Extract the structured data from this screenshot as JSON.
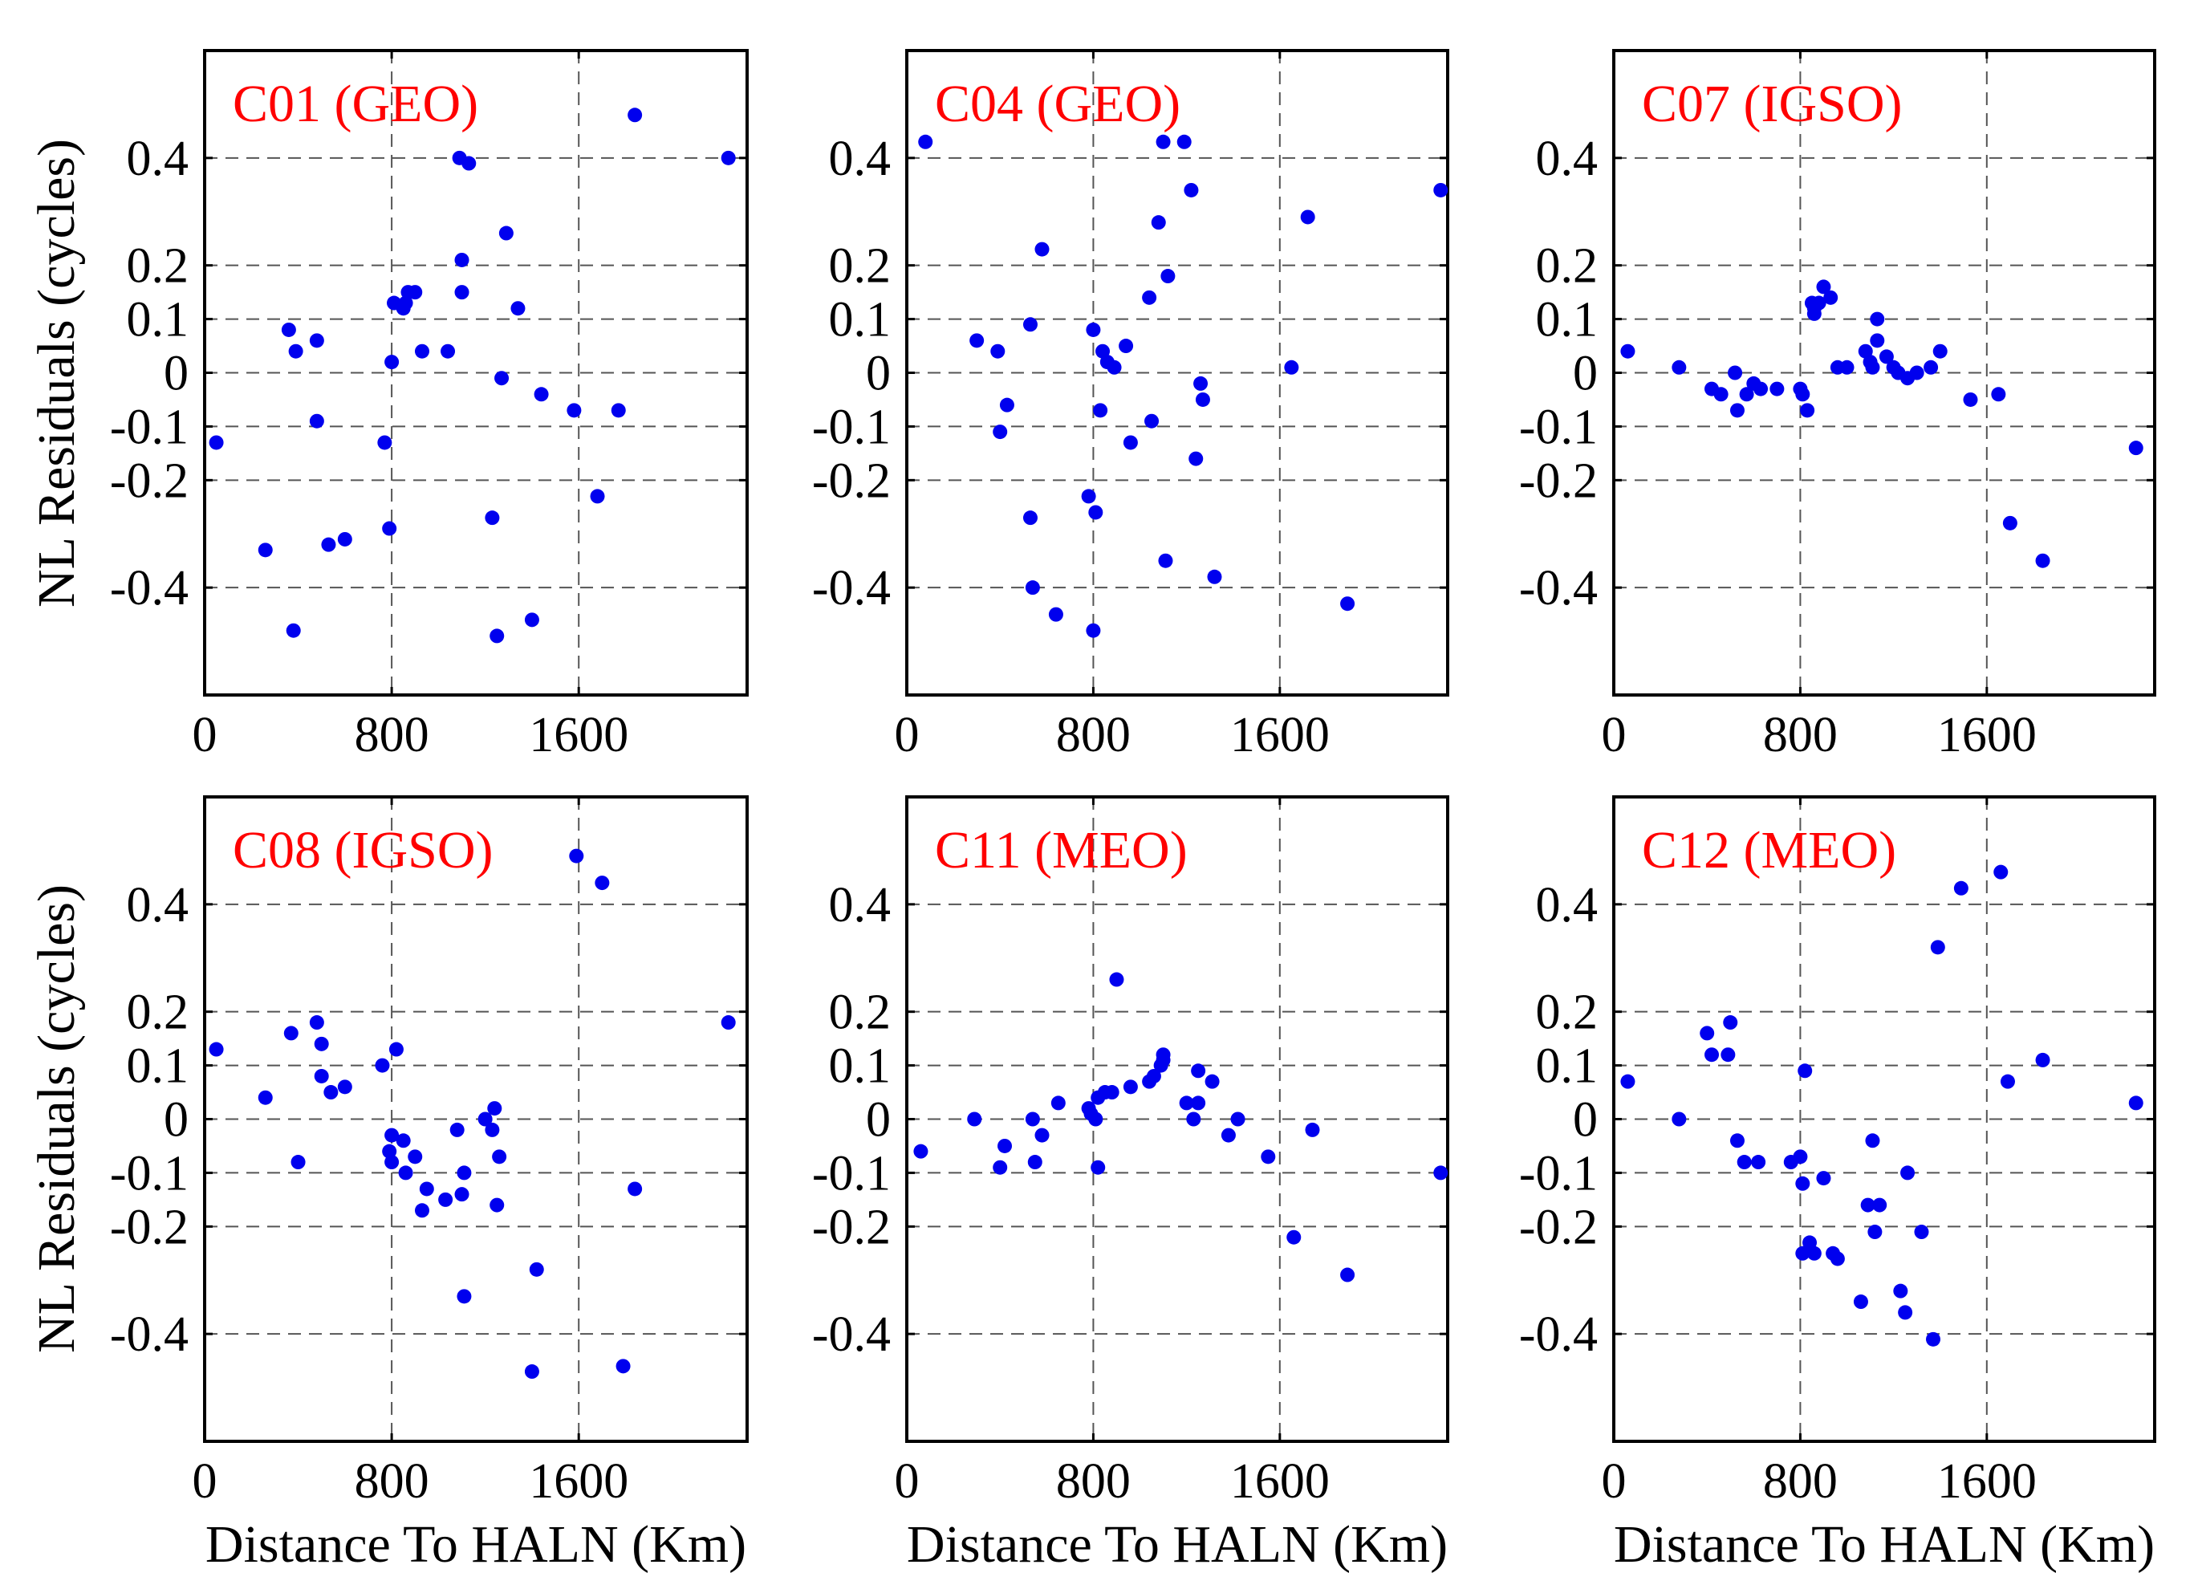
{
  "figure": {
    "ylabel": "NL Residuals (cycles)",
    "xlabel": "Distance To HALN (Km)",
    "title_color": "#ff0000",
    "marker_color": "#0000ee"
  },
  "chart_data": [
    {
      "type": "scatter",
      "title": "C01 (GEO)",
      "xlim": [
        0,
        2320
      ],
      "ylim": [
        -0.6,
        0.6
      ],
      "xticks": [
        0,
        800,
        1600
      ],
      "xtick_labels": [
        "0",
        "800",
        "1600"
      ],
      "yticks": [
        0.4,
        0.2,
        0.1,
        0,
        -0.1,
        -0.2,
        -0.4
      ],
      "ytick_labels": [
        "0.4",
        "0.2",
        "0.1",
        "0",
        "-0.1",
        "-0.2",
        "-0.4"
      ],
      "grid": true,
      "xlabel": "",
      "ylabel": "NL Residuals (cycles)",
      "x": [
        50,
        260,
        360,
        390,
        380,
        480,
        480,
        530,
        600,
        770,
        790,
        800,
        810,
        860,
        870,
        850,
        900,
        930,
        1040,
        1090,
        1100,
        1100,
        1130,
        1250,
        1230,
        1270,
        1290,
        1340,
        1400,
        1440,
        1580,
        1680,
        1770,
        1840,
        2240
      ],
      "y": [
        -0.13,
        -0.33,
        0.08,
        0.04,
        -0.48,
        0.06,
        -0.09,
        -0.32,
        -0.31,
        -0.13,
        -0.29,
        0.02,
        0.13,
        0.13,
        0.15,
        0.12,
        0.15,
        0.04,
        0.04,
        0.4,
        0.21,
        0.15,
        0.39,
        -0.49,
        -0.27,
        -0.01,
        0.26,
        0.12,
        -0.46,
        -0.04,
        -0.07,
        -0.23,
        -0.07,
        0.48,
        0.4
      ]
    },
    {
      "type": "scatter",
      "title": "C04 (GEO)",
      "xlim": [
        0,
        2320
      ],
      "ylim": [
        -0.6,
        0.6
      ],
      "xticks": [
        0,
        800,
        1600
      ],
      "xtick_labels": [
        "0",
        "800",
        "1600"
      ],
      "yticks": [
        0.4,
        0.2,
        0.1,
        0,
        -0.1,
        -0.2,
        -0.4
      ],
      "ytick_labels": [
        "0.4",
        "0.2",
        "0.1",
        "0",
        "-0.1",
        "-0.2",
        "-0.4"
      ],
      "grid": true,
      "xlabel": "",
      "ylabel": "",
      "x": [
        80,
        300,
        390,
        400,
        430,
        530,
        530,
        540,
        580,
        640,
        780,
        800,
        810,
        800,
        830,
        840,
        860,
        890,
        940,
        960,
        1040,
        1050,
        1080,
        1100,
        1110,
        1120,
        1190,
        1220,
        1240,
        1260,
        1270,
        1320,
        1650,
        1720,
        1890,
        2290
      ],
      "y": [
        0.43,
        0.06,
        0.04,
        -0.11,
        -0.06,
        0.09,
        -0.27,
        -0.4,
        0.23,
        -0.45,
        -0.23,
        -0.48,
        -0.26,
        0.08,
        -0.07,
        0.04,
        0.02,
        0.01,
        0.05,
        -0.13,
        0.14,
        -0.09,
        0.28,
        0.43,
        -0.35,
        0.18,
        0.43,
        0.34,
        -0.16,
        -0.02,
        -0.05,
        -0.38,
        0.01,
        0.29,
        -0.43,
        0.34
      ]
    },
    {
      "type": "scatter",
      "title": "C07 (IGSO)",
      "xlim": [
        0,
        2320
      ],
      "ylim": [
        -0.6,
        0.6
      ],
      "xticks": [
        0,
        800,
        1600
      ],
      "xtick_labels": [
        "0",
        "800",
        "1600"
      ],
      "yticks": [
        0.4,
        0.2,
        0.1,
        0,
        -0.1,
        -0.2,
        -0.4
      ],
      "ytick_labels": [
        "0.4",
        "0.2",
        "0.1",
        "0",
        "-0.1",
        "-0.2",
        "-0.4"
      ],
      "grid": true,
      "xlabel": "",
      "ylabel": "",
      "x": [
        60,
        280,
        420,
        460,
        520,
        530,
        570,
        600,
        630,
        700,
        800,
        810,
        830,
        850,
        860,
        860,
        880,
        900,
        930,
        960,
        1000,
        1080,
        1100,
        1110,
        1130,
        1130,
        1170,
        1200,
        1220,
        1260,
        1300,
        1360,
        1400,
        1530,
        1650,
        1700,
        1840,
        2240
      ],
      "y": [
        0.04,
        0.01,
        -0.03,
        -0.04,
        0.0,
        -0.07,
        -0.04,
        -0.02,
        -0.03,
        -0.03,
        -0.03,
        -0.04,
        -0.07,
        0.13,
        0.11,
        0.12,
        0.13,
        0.16,
        0.14,
        0.01,
        0.01,
        0.04,
        0.02,
        0.01,
        0.1,
        0.06,
        0.03,
        0.01,
        0.0,
        -0.01,
        0.0,
        0.01,
        0.04,
        -0.05,
        -0.04,
        -0.28,
        -0.35,
        -0.14
      ]
    },
    {
      "type": "scatter",
      "title": "C08 (IGSO)",
      "xlim": [
        0,
        2320
      ],
      "ylim": [
        -0.6,
        0.6
      ],
      "xticks": [
        0,
        800,
        1600
      ],
      "xtick_labels": [
        "0",
        "800",
        "1600"
      ],
      "yticks": [
        0.4,
        0.2,
        0.1,
        0,
        -0.1,
        -0.2,
        -0.4
      ],
      "ytick_labels": [
        "0.4",
        "0.2",
        "0.1",
        "0",
        "-0.1",
        "-0.2",
        "-0.4"
      ],
      "grid": true,
      "xlabel": "Distance To HALN (Km)",
      "ylabel": "NL Residuals (cycles)",
      "x": [
        50,
        260,
        370,
        400,
        480,
        500,
        500,
        540,
        600,
        760,
        790,
        800,
        800,
        820,
        850,
        860,
        900,
        930,
        950,
        1030,
        1080,
        1100,
        1110,
        1110,
        1200,
        1230,
        1240,
        1250,
        1260,
        1400,
        1420,
        1590,
        1700,
        1790,
        1840,
        2240
      ],
      "y": [
        0.13,
        0.04,
        0.16,
        -0.08,
        0.18,
        0.14,
        0.08,
        0.05,
        0.06,
        0.1,
        -0.06,
        -0.08,
        -0.03,
        0.13,
        -0.04,
        -0.1,
        -0.07,
        -0.17,
        -0.13,
        -0.15,
        -0.02,
        -0.14,
        -0.1,
        -0.33,
        0.0,
        -0.02,
        0.02,
        -0.16,
        -0.07,
        -0.47,
        -0.28,
        0.49,
        0.44,
        -0.46,
        -0.13,
        0.18
      ]
    },
    {
      "type": "scatter",
      "title": "C11 (MEO)",
      "xlim": [
        0,
        2320
      ],
      "ylim": [
        -0.6,
        0.6
      ],
      "xticks": [
        0,
        800,
        1600
      ],
      "xtick_labels": [
        "0",
        "800",
        "1600"
      ],
      "yticks": [
        0.4,
        0.2,
        0.1,
        0,
        -0.1,
        -0.2,
        -0.4
      ],
      "ytick_labels": [
        "0.4",
        "0.2",
        "0.1",
        "0",
        "-0.1",
        "-0.2",
        "-0.4"
      ],
      "grid": true,
      "xlabel": "Distance To HALN (Km)",
      "ylabel": "",
      "x": [
        60,
        290,
        400,
        420,
        540,
        550,
        580,
        650,
        780,
        790,
        810,
        820,
        820,
        850,
        880,
        900,
        960,
        1040,
        1060,
        1090,
        1100,
        1100,
        1200,
        1230,
        1250,
        1250,
        1310,
        1380,
        1420,
        1550,
        1660,
        1740,
        1890,
        2290
      ],
      "y": [
        -0.06,
        0.0,
        -0.09,
        -0.05,
        0.0,
        -0.08,
        -0.03,
        0.03,
        0.02,
        0.01,
        0.0,
        0.04,
        -0.09,
        0.05,
        0.05,
        0.26,
        0.06,
        0.07,
        0.08,
        0.1,
        0.11,
        0.12,
        0.03,
        0.0,
        0.09,
        0.03,
        0.07,
        -0.03,
        0.0,
        -0.07,
        -0.22,
        -0.02,
        -0.29,
        -0.1
      ]
    },
    {
      "type": "scatter",
      "title": "C12 (MEO)",
      "xlim": [
        0,
        2320
      ],
      "ylim": [
        -0.6,
        0.6
      ],
      "xticks": [
        0,
        800,
        1600
      ],
      "xtick_labels": [
        "0",
        "800",
        "1600"
      ],
      "yticks": [
        0.4,
        0.2,
        0.1,
        0,
        -0.1,
        -0.2,
        -0.4
      ],
      "ytick_labels": [
        "0.4",
        "0.2",
        "0.1",
        "0",
        "-0.1",
        "-0.2",
        "-0.4"
      ],
      "grid": true,
      "xlabel": "Distance To HALN (Km)",
      "ylabel": "",
      "x": [
        60,
        280,
        400,
        420,
        490,
        500,
        530,
        560,
        620,
        760,
        800,
        810,
        810,
        820,
        840,
        860,
        900,
        940,
        960,
        1060,
        1090,
        1110,
        1120,
        1140,
        1230,
        1250,
        1260,
        1320,
        1370,
        1390,
        1490,
        1660,
        1690,
        1840,
        2240
      ],
      "y": [
        0.07,
        0.0,
        0.16,
        0.12,
        0.12,
        0.18,
        -0.04,
        -0.08,
        -0.08,
        -0.08,
        -0.07,
        -0.12,
        -0.25,
        0.09,
        -0.23,
        -0.25,
        -0.11,
        -0.25,
        -0.26,
        -0.34,
        -0.16,
        -0.04,
        -0.21,
        -0.16,
        -0.32,
        -0.36,
        -0.1,
        -0.21,
        -0.41,
        0.32,
        0.43,
        0.46,
        0.07,
        0.11,
        0.03
      ]
    }
  ]
}
